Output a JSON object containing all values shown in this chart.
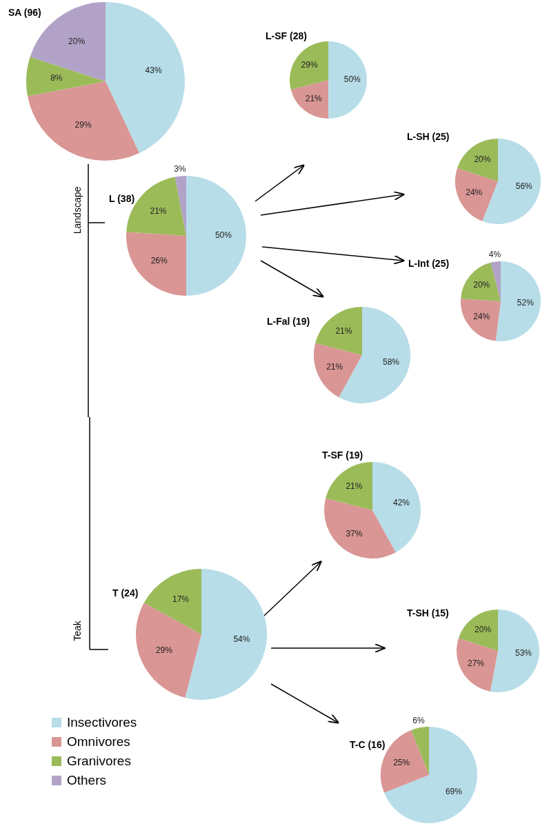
{
  "chart_data": [
    {
      "type": "pie",
      "title": "SA (96)",
      "categories": [
        "Insectivores",
        "Omnivores",
        "Granivores",
        "Others"
      ],
      "values": [
        43,
        29,
        8,
        20
      ],
      "colors": [
        "#b7dde8",
        "#d99694",
        "#9bbb59",
        "#b3a2c7"
      ],
      "value_labels": [
        "43%",
        "29%",
        "8%",
        "20%"
      ],
      "legend": "bottom left"
    },
    {
      "type": "pie",
      "title": "L-SF (28)",
      "categories": [
        null,
        null,
        null
      ],
      "values": [
        50,
        21,
        29
      ],
      "colors": [
        "#b7dde8",
        "#d99694",
        "#9bbb59"
      ],
      "value_labels": [
        "50%",
        "21%",
        "29%"
      ]
    },
    {
      "type": "pie",
      "title": "L-SH (25)",
      "categories": [
        null,
        null,
        null
      ],
      "values": [
        56,
        24,
        20
      ],
      "colors": [
        "#b7dde8",
        "#d99694",
        "#9bbb59"
      ],
      "value_labels": [
        "56%",
        "24%",
        "20%"
      ]
    },
    {
      "type": "pie",
      "title": "L (38)",
      "categories": [
        null,
        null,
        null,
        null
      ],
      "values": [
        50,
        26,
        21,
        3
      ],
      "colors": [
        "#b7dde8",
        "#d99694",
        "#9bbb59",
        "#b3a2c7"
      ],
      "value_labels": [
        "50%",
        "26%",
        "21%",
        "3%"
      ],
      "annotations": [
        "Landscape"
      ]
    },
    {
      "type": "pie",
      "title": "L-Int (25)",
      "categories": [
        null,
        null,
        null,
        null
      ],
      "values": [
        52,
        24,
        20,
        4
      ],
      "colors": [
        "#b7dde8",
        "#d99694",
        "#9bbb59",
        "#b3a2c7"
      ],
      "value_labels": [
        "52%",
        "24%",
        "20%",
        "4%"
      ]
    },
    {
      "type": "pie",
      "title": "L-Fal (19)",
      "categories": [
        null,
        null,
        null
      ],
      "values": [
        58,
        21,
        21
      ],
      "colors": [
        "#b7dde8",
        "#d99694",
        "#9bbb59"
      ],
      "value_labels": [
        "58%",
        "21%",
        "21%"
      ]
    },
    {
      "type": "pie",
      "title": "T-SF (19)",
      "categories": [
        null,
        null,
        null
      ],
      "values": [
        42,
        37,
        21
      ],
      "colors": [
        "#b7dde8",
        "#d99694",
        "#9bbb59"
      ],
      "value_labels": [
        "42%",
        "37%",
        "21%"
      ]
    },
    {
      "type": "pie",
      "title": "T (24)",
      "categories": [
        null,
        null,
        null
      ],
      "values": [
        54,
        29,
        17
      ],
      "colors": [
        "#b7dde8",
        "#d99694",
        "#9bbb59"
      ],
      "value_labels": [
        "54%",
        "29%",
        "17%"
      ],
      "annotations": [
        "Teak"
      ]
    },
    {
      "type": "pie",
      "title": "T-SH (15)",
      "categories": [
        null,
        null,
        null
      ],
      "values": [
        53,
        27,
        20
      ],
      "colors": [
        "#b7dde8",
        "#d99694",
        "#9bbb59"
      ],
      "value_labels": [
        "53%",
        "27%",
        "20%"
      ]
    },
    {
      "type": "pie",
      "title": "T-C (16)",
      "categories": [
        null,
        null,
        null
      ],
      "values": [
        69,
        25,
        6
      ],
      "colors": [
        "#b7dde8",
        "#d99694",
        "#9bbb59"
      ],
      "value_labels": [
        "69%",
        "25%",
        "6%"
      ]
    }
  ]
}
